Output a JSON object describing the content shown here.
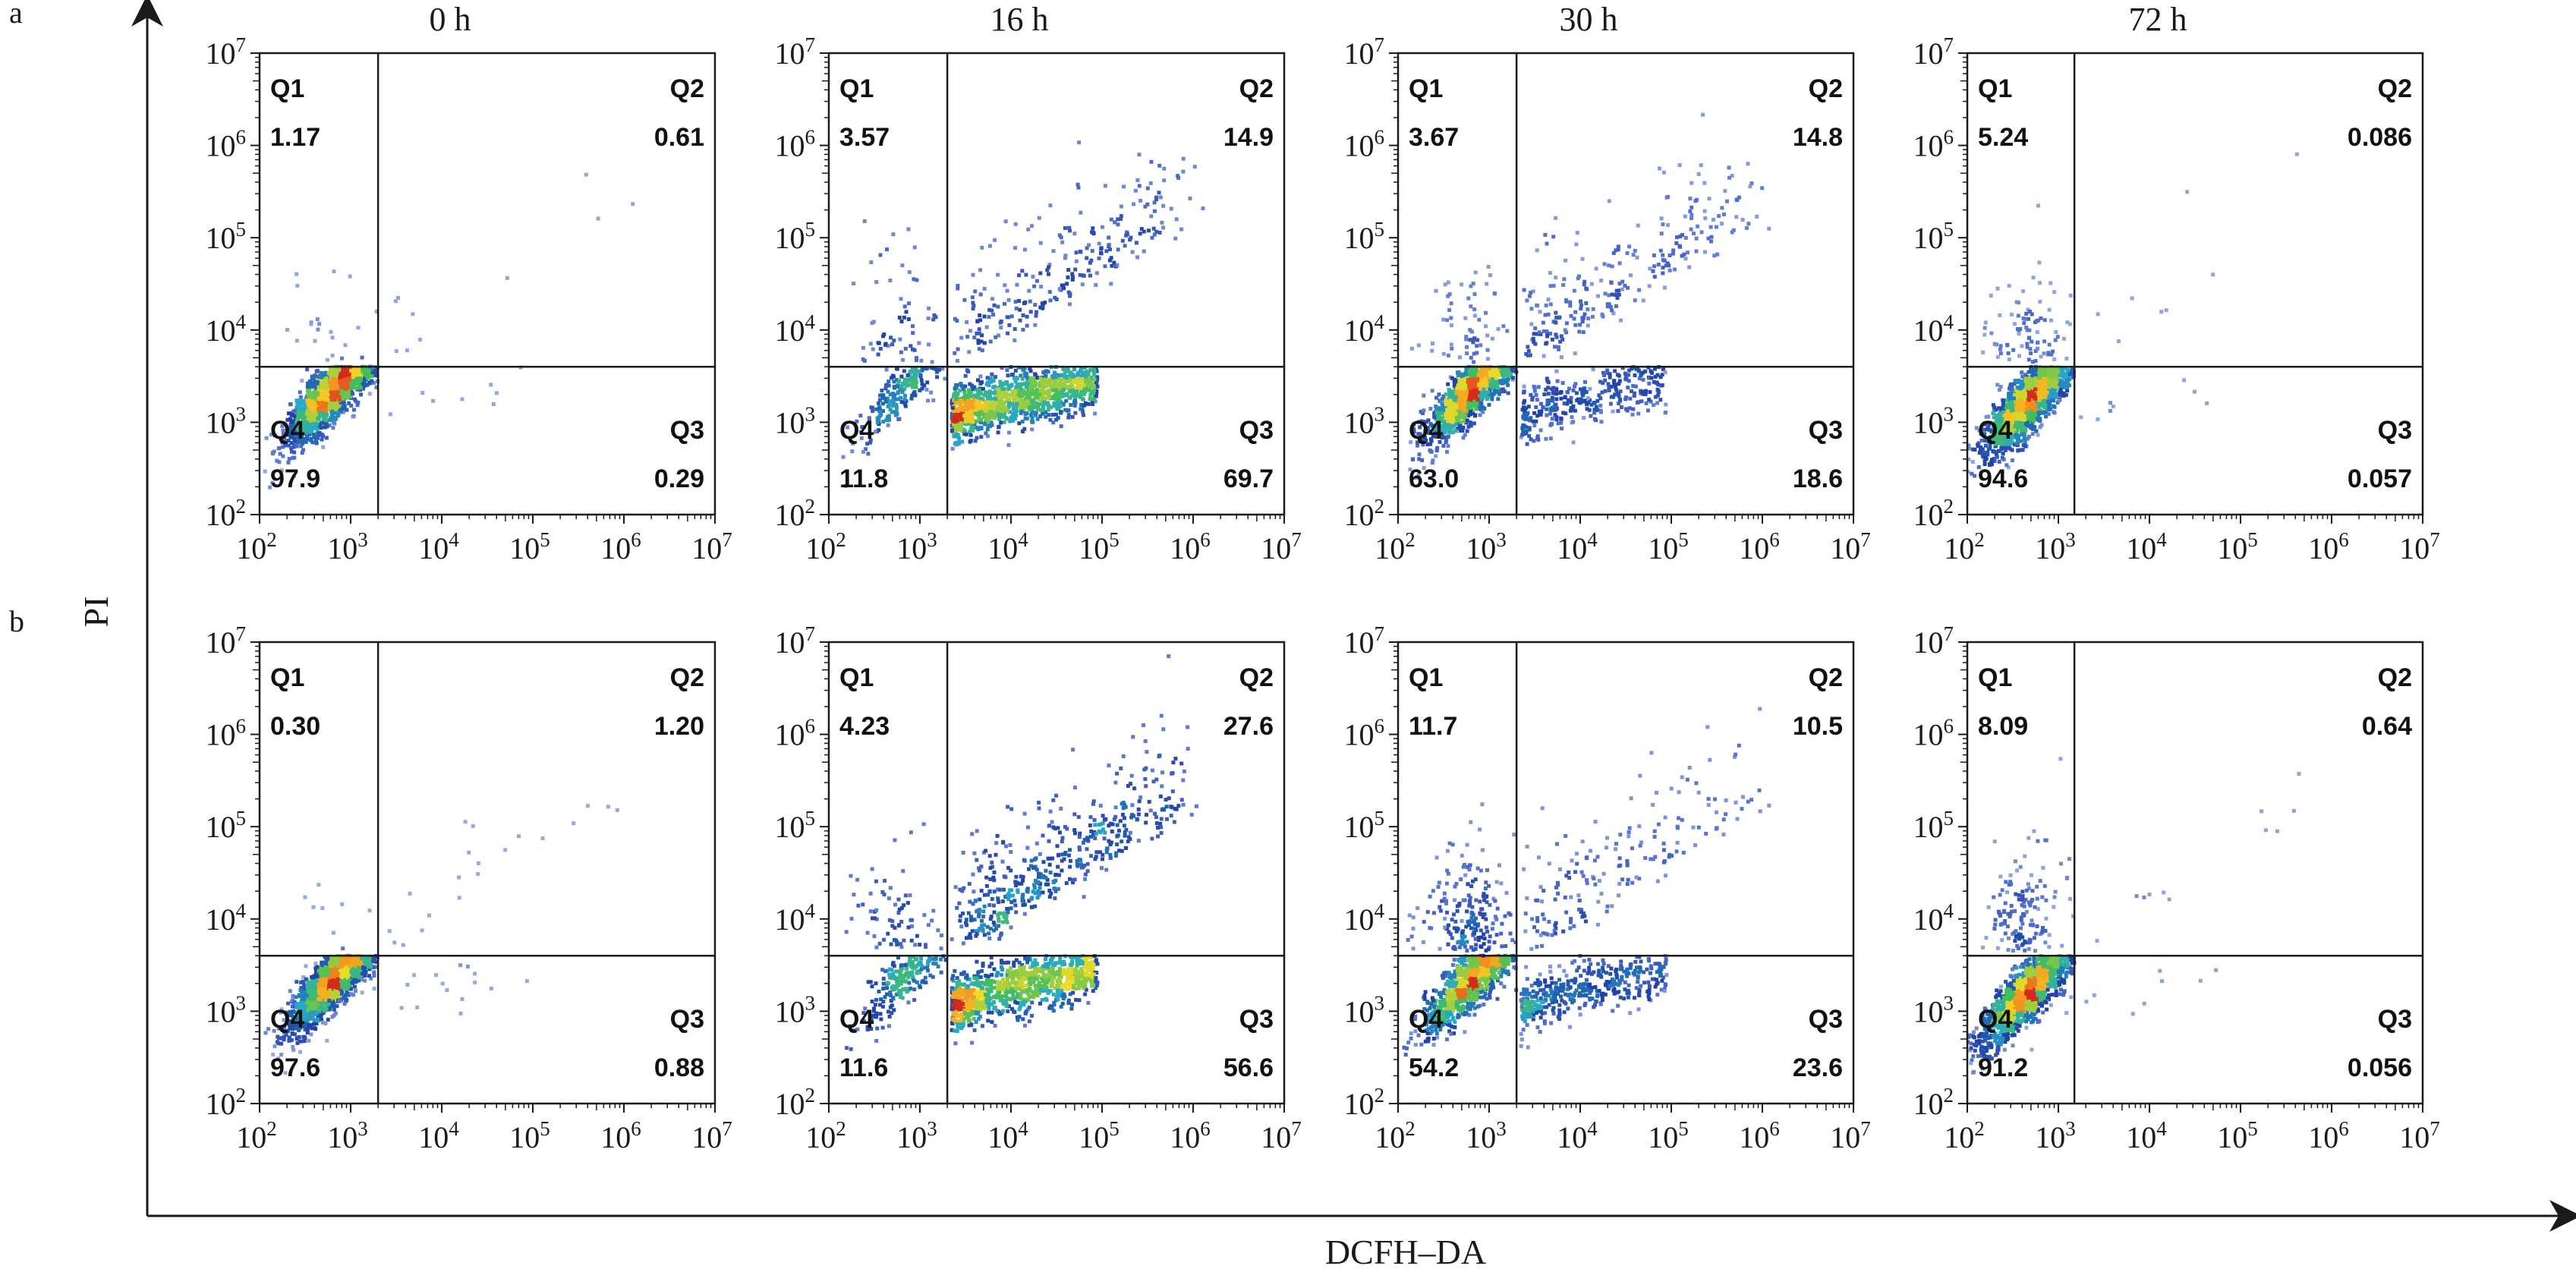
{
  "chart_data": {
    "type": "scatter",
    "chart_kind": "flow-cytometry quadrant density plots",
    "xlabel": "DCFH–DA",
    "ylabel": "PI",
    "x_scale": "log",
    "y_scale": "log",
    "xlim": [
      100,
      10000000
    ],
    "ylim": [
      100,
      10000000
    ],
    "tick_exponents": [
      2,
      3,
      4,
      5,
      6,
      7
    ],
    "tick_base": "10",
    "grid": false,
    "legend": "none",
    "quadrant_labels": [
      "Q1",
      "Q2",
      "Q3",
      "Q4"
    ],
    "columns": [
      "0 h",
      "16 h",
      "30 h",
      "72 h"
    ],
    "rows": [
      {
        "label": "a",
        "panels": [
          {
            "x_gate": 2000,
            "y_gate": 4000,
            "Q1": "1.17",
            "Q2": "0.61",
            "Q3": "0.29",
            "Q4": "97.9"
          },
          {
            "x_gate": 2000,
            "y_gate": 4000,
            "Q1": "3.57",
            "Q2": "14.9",
            "Q3": "69.7",
            "Q4": "11.8"
          },
          {
            "x_gate": 2000,
            "y_gate": 4000,
            "Q1": "3.67",
            "Q2": "14.8",
            "Q3": "18.6",
            "Q4": "63.0"
          },
          {
            "x_gate": 1500,
            "y_gate": 4000,
            "Q1": "5.24",
            "Q2": "0.086",
            "Q3": "0.057",
            "Q4": "94.6"
          }
        ]
      },
      {
        "label": "b",
        "panels": [
          {
            "x_gate": 2000,
            "y_gate": 4000,
            "Q1": "0.30",
            "Q2": "1.20",
            "Q3": "0.88",
            "Q4": "97.6"
          },
          {
            "x_gate": 2000,
            "y_gate": 4000,
            "Q1": "4.23",
            "Q2": "27.6",
            "Q3": "56.6",
            "Q4": "11.6"
          },
          {
            "x_gate": 2000,
            "y_gate": 4000,
            "Q1": "11.7",
            "Q2": "10.5",
            "Q3": "23.6",
            "Q4": "54.2"
          },
          {
            "x_gate": 1500,
            "y_gate": 4000,
            "Q1": "8.09",
            "Q2": "0.64",
            "Q3": "0.056",
            "Q4": "91.2"
          }
        ]
      }
    ],
    "colors": {
      "frame": "#1a1a1a",
      "label_text": "#1a1a1a",
      "density_low": "#e4ecf7",
      "density_mid": "#1f3fa8",
      "density_high": "#d42a1c"
    }
  }
}
